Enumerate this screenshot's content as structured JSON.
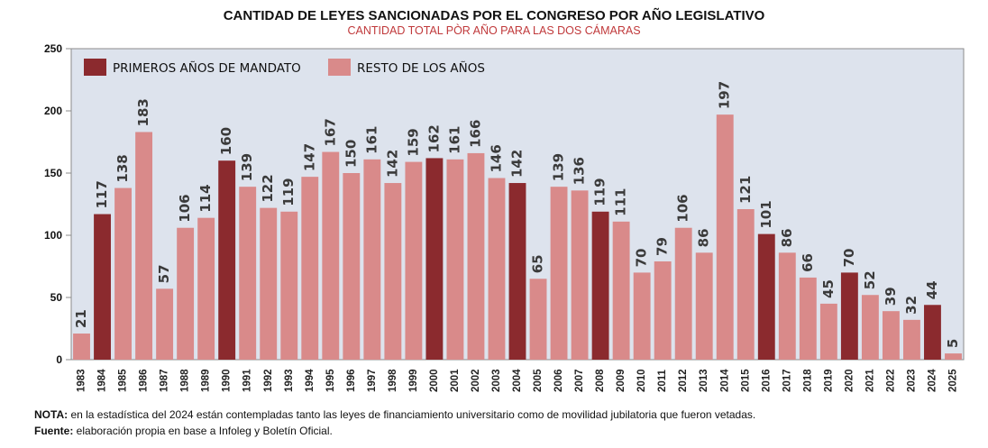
{
  "chart_data": {
    "type": "bar",
    "title": "CANTIDAD DE LEYES SANCIONADAS POR EL CONGRESO POR AÑO LEGISLATIVO",
    "subtitle": "CANTIDAD TOTAL PÒR AÑO PARA LAS DOS CÁMARAS",
    "xlabel": "",
    "ylabel": "",
    "ylim": [
      0,
      250
    ],
    "yticks": [
      0,
      50,
      100,
      150,
      200,
      250
    ],
    "grid": false,
    "legend_position": "top-left",
    "categories": [
      "1983",
      "1984",
      "1985",
      "1986",
      "1987",
      "1988",
      "1989",
      "1990",
      "1991",
      "1992",
      "1993",
      "1994",
      "1995",
      "1996",
      "1997",
      "1998",
      "1999",
      "2000",
      "2001",
      "2002",
      "2003",
      "2004",
      "2005",
      "2006",
      "2007",
      "2008",
      "2009",
      "2010",
      "2011",
      "2012",
      "2013",
      "2014",
      "2015",
      "2016",
      "2017",
      "2018",
      "2019",
      "2020",
      "2021",
      "2022",
      "2023",
      "2024",
      "2025"
    ],
    "values": [
      21,
      117,
      138,
      183,
      57,
      106,
      114,
      160,
      139,
      122,
      119,
      147,
      167,
      150,
      161,
      142,
      159,
      162,
      161,
      166,
      146,
      142,
      65,
      139,
      136,
      119,
      111,
      70,
      79,
      106,
      86,
      197,
      121,
      101,
      86,
      66,
      45,
      70,
      52,
      39,
      32,
      44,
      5
    ],
    "series": [
      {
        "name": "PRIMEROS AÑOS DE MANDATO",
        "color": "#8b2a2e",
        "categories": [
          "1984",
          "1990",
          "2000",
          "2004",
          "2008",
          "2016",
          "2020",
          "2024"
        ]
      },
      {
        "name": "RESTO DE LOS AÑOS",
        "color": "#d98a8a"
      }
    ],
    "colors": {
      "plot_bg": "#dde3ed",
      "axis": "#8b8b8b"
    }
  },
  "notes": {
    "nota_label": "NOTA:",
    "nota_text": " en la estadística del 2024 están contempladas tanto las leyes de financiamiento universitario como de movilidad jubilatoria que fueron vetadas.",
    "fuente_label": "Fuente:",
    "fuente_text": " elaboración propia en base a Infoleg y Boletín Oficial."
  }
}
